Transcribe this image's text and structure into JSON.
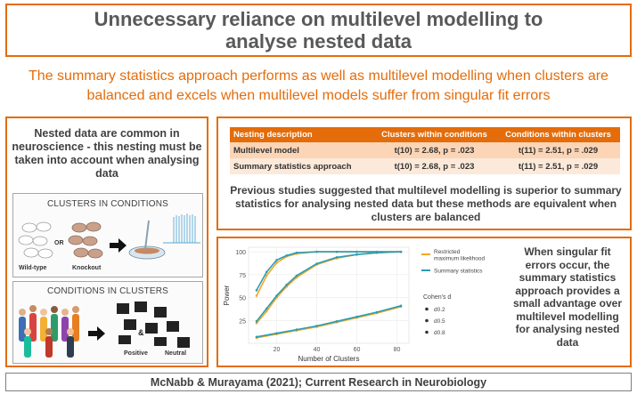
{
  "title": "Unnecessary reliance on multilevel modelling to analyse nested data",
  "subtitle": "The summary statistics approach performs as well as multilevel modelling when clusters are balanced and excels when multilevel models suffer from singular fit errors",
  "left_panel": {
    "text": "Nested data are common in neuroscience - this nesting must be taken into account when analysing data",
    "clusters_in_conditions": {
      "title": "CLUSTERS IN CONDITIONS",
      "or_label": "OR",
      "wild_type_label": "Wild-type",
      "knockout_label": "Knockout"
    },
    "conditions_in_clusters": {
      "title": "CONDITIONS IN CLUSTERS",
      "positive_label": "Positive",
      "neutral_label": "Neutral"
    }
  },
  "table": {
    "headers": [
      "Nesting description",
      "Clusters within conditions",
      "Conditions  within clusters"
    ],
    "rows": [
      [
        "Multilevel model",
        "t(10) = 2.68, p = .023",
        "t(11) = 2.51, p = .029"
      ],
      [
        "Summary statistics approach",
        "t(10) = 2.68, p = .023",
        "t(11) = 2.51, p = .029"
      ]
    ],
    "note": "Previous studies suggested that multilevel modelling is superior to summary statistics for analysing nested data but these methods are equivalent when clusters are balanced"
  },
  "chart_note": "When singular fit errors occur, the summary statistics approach provides a small advantage over multilevel modelling for analysing nested data",
  "chart_data": {
    "type": "line",
    "title": "",
    "xlabel": "Number of Clusters",
    "ylabel": "Power",
    "xlim": [
      6,
      86
    ],
    "ylim": [
      0,
      105
    ],
    "x_ticks": [
      20,
      40,
      60,
      80
    ],
    "y_ticks": [
      25,
      50,
      75,
      100
    ],
    "grid": true,
    "colors": {
      "restricted": "#f5a623",
      "summary": "#2a9db5",
      "accent": "#e46c0a"
    },
    "method_legend": [
      {
        "name": "Restricted maximum likelihood",
        "color": "#f5a623"
      },
      {
        "name": "Summary statistics",
        "color": "#2a9db5"
      }
    ],
    "effect_legend_title": "Cohen's d",
    "effect_legend": [
      "d0.2",
      "d0.5",
      "d0.8"
    ],
    "series": [
      {
        "method": "Restricted maximum likelihood",
        "effect": "d0.2",
        "x": [
          10,
          20,
          30,
          40,
          50,
          60,
          70,
          82
        ],
        "values": [
          6,
          10,
          14,
          18,
          23,
          28,
          33,
          40
        ]
      },
      {
        "method": "Summary statistics",
        "effect": "d0.2",
        "x": [
          10,
          20,
          30,
          40,
          50,
          60,
          70,
          82
        ],
        "values": [
          7,
          11,
          15,
          19,
          24,
          29,
          34,
          41
        ]
      },
      {
        "method": "Restricted maximum likelihood",
        "effect": "d0.5",
        "x": [
          10,
          15,
          20,
          25,
          30,
          40,
          50,
          60,
          70,
          82
        ],
        "values": [
          22,
          35,
          50,
          62,
          72,
          86,
          93,
          97,
          99,
          100
        ]
      },
      {
        "method": "Summary statistics",
        "effect": "d0.5",
        "x": [
          10,
          15,
          20,
          25,
          30,
          40,
          50,
          60,
          70,
          82
        ],
        "values": [
          24,
          38,
          52,
          64,
          74,
          87,
          94,
          97,
          99,
          100
        ]
      },
      {
        "method": "Restricted maximum likelihood",
        "effect": "d0.8",
        "x": [
          10,
          15,
          20,
          25,
          30,
          40,
          50,
          60,
          70,
          82
        ],
        "values": [
          52,
          74,
          88,
          95,
          98,
          100,
          100,
          100,
          100,
          100
        ]
      },
      {
        "method": "Summary statistics",
        "effect": "d0.8",
        "x": [
          10,
          15,
          20,
          25,
          30,
          40,
          50,
          60,
          70,
          82
        ],
        "values": [
          58,
          78,
          91,
          96,
          99,
          100,
          100,
          100,
          100,
          100
        ]
      }
    ]
  },
  "footer": "McNabb & Murayama (2021); Current Research in Neurobiology"
}
